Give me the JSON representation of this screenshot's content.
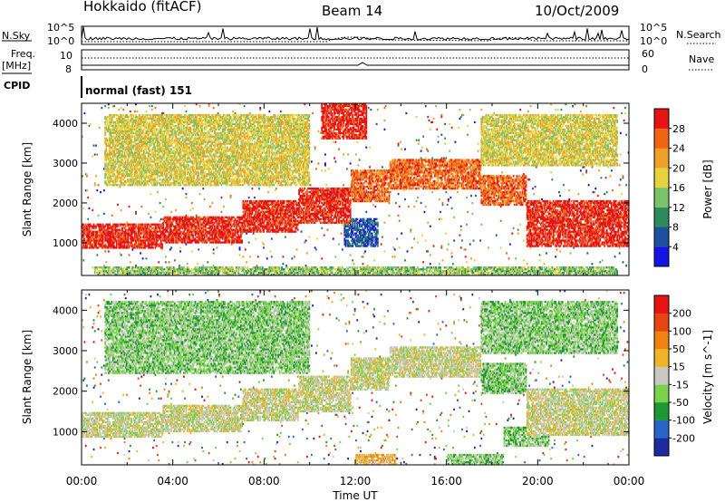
{
  "header": {
    "station": "Hokkaido (fitACF)",
    "beam": "Beam 14",
    "date": "10/Oct/2009"
  },
  "status_rows": {
    "nsky_label": "N.Sky",
    "nsky_tick_top": "10^5",
    "nsky_tick_bottom": "10^0",
    "nsearch_label": "N.Search",
    "nsearch_tick_top": "10^5",
    "nsearch_tick_bottom": "10^0",
    "freq_label_1": "Freq.",
    "freq_label_2": "[MHz]",
    "freq_tick_top": "10",
    "freq_tick_bottom": "8",
    "nave_label": "Nave",
    "nave_tick_top": "60",
    "nave_tick_bottom": "0",
    "cpid_label": "CPID",
    "cpid_text": "normal (fast) 151"
  },
  "chart_data": [
    {
      "type": "heatmap",
      "name": "power-panel",
      "xlabel": "",
      "ylabel": "Slant Range [km]",
      "xlim": [
        0,
        24
      ],
      "ylim": [
        180,
        4500
      ],
      "yticks": [
        1000,
        2000,
        3000,
        4000
      ],
      "colorbar_label": "Power [dB]",
      "colorbar_ticks": [
        "4",
        "8",
        "12",
        "16",
        "20",
        "24",
        "28"
      ],
      "colorbar_colors": [
        "#1414e6",
        "#1e50a0",
        "#2e8a5a",
        "#7ac36a",
        "#e6d23c",
        "#f0a028",
        "#f06414",
        "#e61414"
      ],
      "bands": [
        {
          "t0": 0.0,
          "t1": 3.5,
          "r0": 820,
          "r1": 1480,
          "level": 7
        },
        {
          "t0": 3.5,
          "t1": 7.0,
          "r0": 950,
          "r1": 1650,
          "level": 7
        },
        {
          "t0": 7.0,
          "t1": 9.5,
          "r0": 1250,
          "r1": 2050,
          "level": 7
        },
        {
          "t0": 9.5,
          "t1": 11.8,
          "r0": 1450,
          "r1": 2350,
          "level": 7
        },
        {
          "t0": 11.8,
          "t1": 13.5,
          "r0": 2000,
          "r1": 2800,
          "level": 6
        },
        {
          "t0": 13.5,
          "t1": 17.5,
          "r0": 2300,
          "r1": 3100,
          "level": 6
        },
        {
          "t0": 17.5,
          "t1": 19.5,
          "r0": 1900,
          "r1": 2700,
          "level": 6
        },
        {
          "t0": 19.5,
          "t1": 24.0,
          "r0": 900,
          "r1": 2050,
          "level": 7
        },
        {
          "t0": 0.5,
          "t1": 23.5,
          "r0": 180,
          "r1": 400,
          "level": 3
        },
        {
          "t0": 1.0,
          "t1": 10.0,
          "r0": 2400,
          "r1": 4200,
          "level": 4
        },
        {
          "t0": 10.5,
          "t1": 12.5,
          "r0": 3600,
          "r1": 4500,
          "level": 7
        },
        {
          "t0": 17.5,
          "t1": 23.5,
          "r0": 2900,
          "r1": 4200,
          "level": 4
        },
        {
          "t0": 11.5,
          "t1": 13.0,
          "r0": 900,
          "r1": 1600,
          "level": 1
        }
      ]
    },
    {
      "type": "heatmap",
      "name": "velocity-panel",
      "xlabel": "Time UT",
      "ylabel": "Slant Range [km]",
      "xlim": [
        0,
        24
      ],
      "ylim": [
        180,
        4500
      ],
      "xticks": [
        "00:00",
        "04:00",
        "08:00",
        "12:00",
        "16:00",
        "20:00",
        "00:00"
      ],
      "yticks": [
        1000,
        2000,
        3000,
        4000
      ],
      "colorbar_label": "Velocity [m s^-1]",
      "colorbar_ticks": [
        "200",
        "100",
        "50",
        "15",
        "-15",
        "-50",
        "-100",
        "-200"
      ],
      "colorbar_colors": [
        "#1e2aa0",
        "#2a64c8",
        "#1e9632",
        "#7ad24a",
        "#c8c8c0",
        "#f0b428",
        "#f08214",
        "#e64614",
        "#e61414"
      ],
      "bands": [
        {
          "t0": 0.0,
          "t1": 3.5,
          "r0": 820,
          "r1": 1480,
          "level": 4
        },
        {
          "t0": 3.5,
          "t1": 7.0,
          "r0": 950,
          "r1": 1650,
          "level": 4
        },
        {
          "t0": 7.0,
          "t1": 9.5,
          "r0": 1250,
          "r1": 2050,
          "level": 4
        },
        {
          "t0": 9.5,
          "t1": 11.8,
          "r0": 1450,
          "r1": 2350,
          "level": 4
        },
        {
          "t0": 11.8,
          "t1": 13.5,
          "r0": 2000,
          "r1": 2800,
          "level": 4
        },
        {
          "t0": 13.5,
          "t1": 17.5,
          "r0": 2300,
          "r1": 3100,
          "level": 4
        },
        {
          "t0": 17.5,
          "t1": 19.5,
          "r0": 1900,
          "r1": 2700,
          "level": 3
        },
        {
          "t0": 19.5,
          "t1": 24.0,
          "r0": 900,
          "r1": 2050,
          "level": 4
        },
        {
          "t0": 12.0,
          "t1": 13.8,
          "r0": 180,
          "r1": 420,
          "level": 5
        },
        {
          "t0": 16.0,
          "t1": 18.5,
          "r0": 180,
          "r1": 420,
          "level": 3
        },
        {
          "t0": 1.0,
          "t1": 10.0,
          "r0": 2400,
          "r1": 4200,
          "level": 3
        },
        {
          "t0": 17.5,
          "t1": 23.5,
          "r0": 2900,
          "r1": 4200,
          "level": 3
        },
        {
          "t0": 18.5,
          "t1": 20.5,
          "r0": 600,
          "r1": 1100,
          "level": 3
        }
      ]
    }
  ]
}
